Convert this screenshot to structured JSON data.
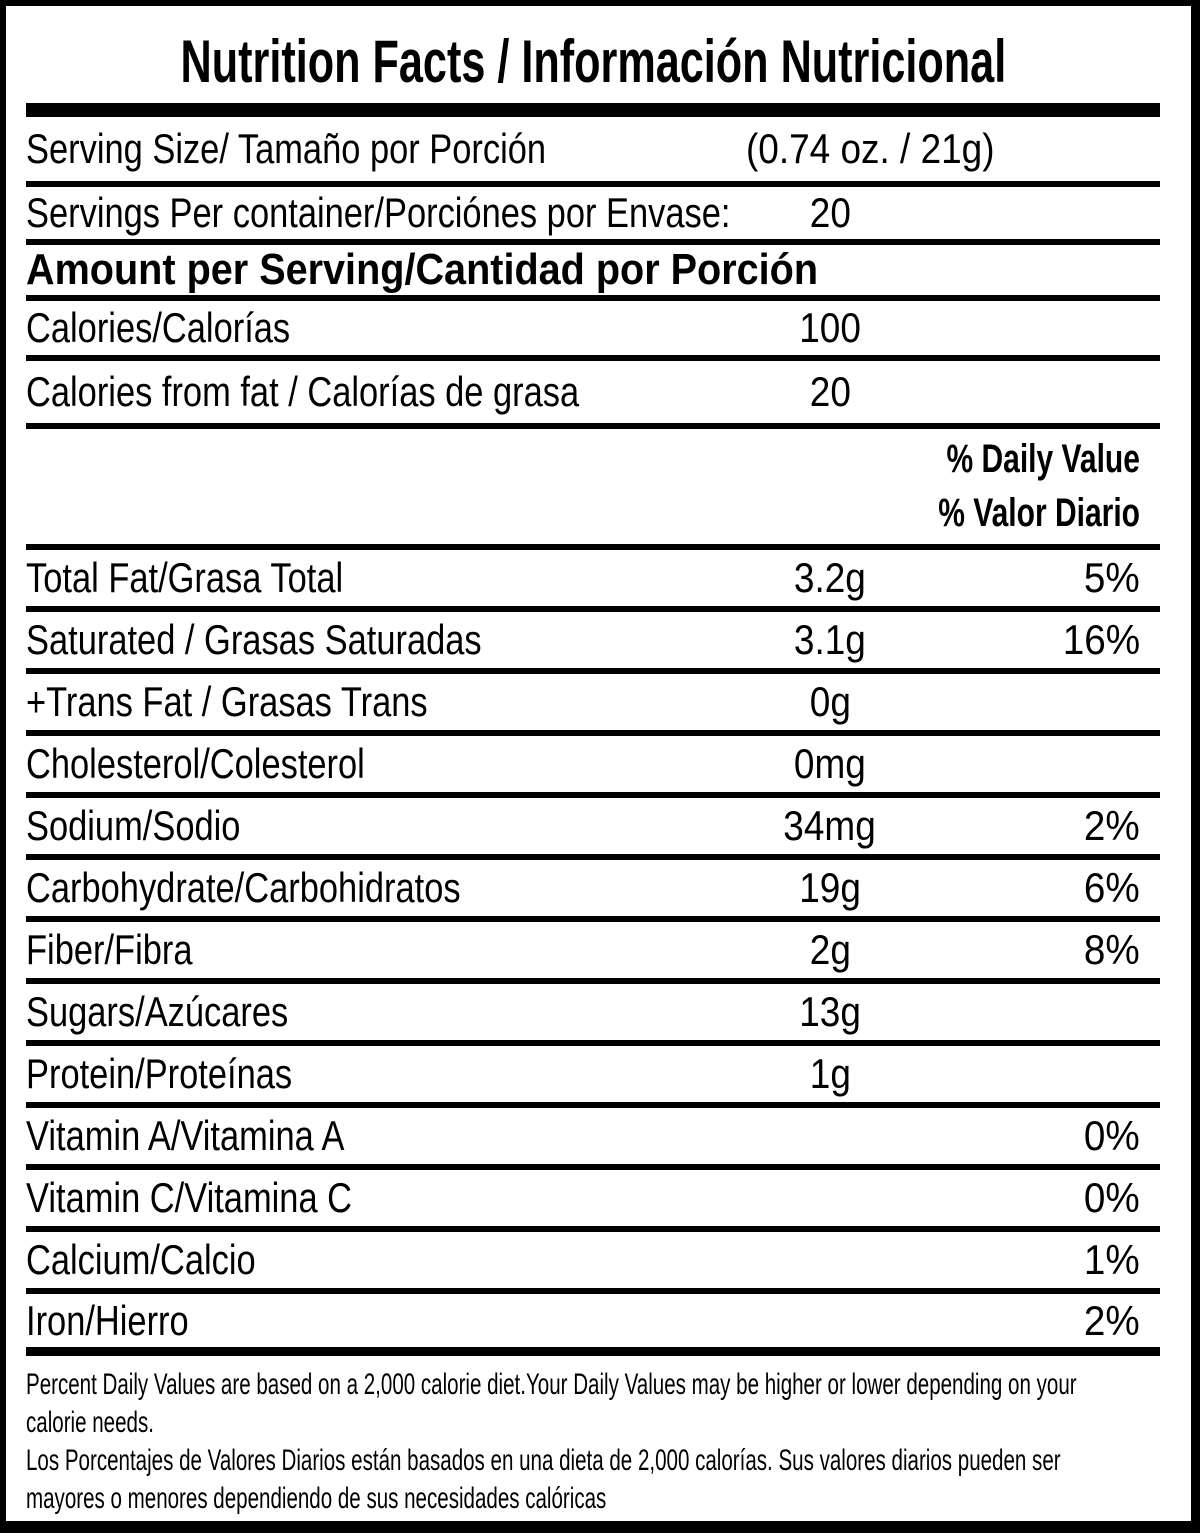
{
  "colors": {
    "text": "#000000",
    "background": "#ffffff",
    "border": "#000000"
  },
  "label": {
    "title": "Nutrition Facts / Información Nutricional",
    "serving_size": {
      "label": "Serving Size/ Tamaño por Porción",
      "value": "(0.74 oz. / 21g)"
    },
    "servings_per_container": {
      "label": "Servings Per container/Porciónes por Envase:",
      "value": "20"
    },
    "amount_per_serving_heading": "Amount per Serving/Cantidad por Porción",
    "calories": {
      "label": "Calories/Calorías",
      "value": "100"
    },
    "calories_from_fat": {
      "label": "Calories from fat / Calorías de grasa",
      "value": "20"
    },
    "daily_value_header_en": "% Daily Value",
    "daily_value_header_es": "% Valor Diario",
    "nutrients": [
      {
        "label": "Total Fat/Grasa Total",
        "amount": "3.2g",
        "daily_value": "5%"
      },
      {
        "label": "Saturated / Grasas Saturadas",
        "amount": "3.1g",
        "daily_value": "16%"
      },
      {
        "label": "+Trans Fat / Grasas Trans",
        "amount": "0g",
        "daily_value": ""
      },
      {
        "label": "Cholesterol/Colesterol",
        "amount": "0mg",
        "daily_value": ""
      },
      {
        "label": "Sodium/Sodio",
        "amount": "34mg",
        "daily_value": "2%"
      },
      {
        "label": "Carbohydrate/Carbohidratos",
        "amount": "19g",
        "daily_value": "6%"
      },
      {
        "label": "Fiber/Fibra",
        "amount": "2g",
        "daily_value": "8%"
      },
      {
        "label": "Sugars/Azúcares",
        "amount": "13g",
        "daily_value": ""
      },
      {
        "label": "Protein/Proteínas",
        "amount": "1g",
        "daily_value": ""
      },
      {
        "label": "Vitamin A/Vitamina A",
        "amount": "",
        "daily_value": "0%"
      },
      {
        "label": "Vitamin C/Vitamina C",
        "amount": "",
        "daily_value": "0%"
      },
      {
        "label": "Calcium/Calcio",
        "amount": "",
        "daily_value": "1%"
      },
      {
        "label": "Iron/Hierro",
        "amount": "",
        "daily_value": "2%"
      }
    ],
    "footnote_en": "Percent Daily Values are based on a 2,000 calorie diet.Your Daily Values may be higher or lower depending on your calorie needs.",
    "footnote_es": "Los Porcentajes de Valores Diarios están basados en una dieta de 2,000 calorías. Sus valores diarios pueden ser mayores o menores dependiendo de sus necesidades calóricas"
  }
}
